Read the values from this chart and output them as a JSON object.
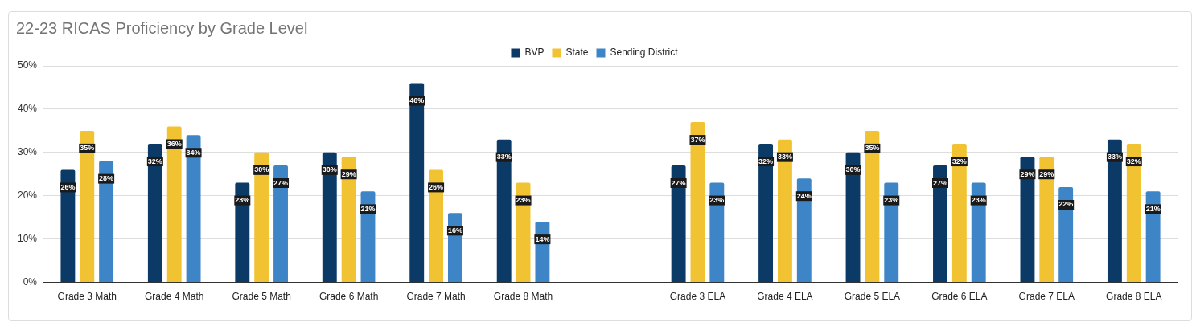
{
  "chart_data": {
    "type": "bar",
    "title": "22-23 RICAS Proficiency by Grade Level",
    "categories": [
      "Grade 3 Math",
      "Grade 4 Math",
      "Grade 5 Math",
      "Grade 6 Math",
      "Grade 7 Math",
      "Grade 8 Math",
      null,
      "Grade 3 ELA",
      "Grade 4 ELA",
      "Grade 5 ELA",
      "Grade 6 ELA",
      "Grade 7 ELA",
      "Grade 8 ELA"
    ],
    "series": [
      {
        "name": "BVP",
        "color": "#0b3a66",
        "values": [
          26,
          32,
          23,
          30,
          46,
          33,
          null,
          27,
          32,
          30,
          27,
          29,
          33
        ],
        "value_labels": [
          "26%",
          "32%",
          "23%",
          "30%",
          "46%",
          "33%",
          null,
          "27%",
          "32%",
          "30%",
          "27%",
          "29%",
          "33%"
        ]
      },
      {
        "name": "State",
        "color": "#f1c232",
        "values": [
          35,
          36,
          30,
          29,
          26,
          23,
          null,
          37,
          33,
          35,
          32,
          29,
          32
        ],
        "value_labels": [
          "35%",
          "36%",
          "30%",
          "29%",
          "26%",
          "23%",
          null,
          "37%",
          "33%",
          "35%",
          "32%",
          "29%",
          "32%"
        ]
      },
      {
        "name": "Sending District",
        "color": "#3d85c6",
        "values": [
          28,
          34,
          27,
          21,
          16,
          14,
          null,
          23,
          24,
          23,
          23,
          22,
          21
        ],
        "value_labels": [
          "28%",
          "34%",
          "27%",
          "21%",
          "16%",
          "14%",
          null,
          "23%",
          "24%",
          "23%",
          "23%",
          "22%",
          "21%"
        ]
      }
    ],
    "ylim": [
      0,
      50
    ],
    "yticks": [
      {
        "value": 0,
        "label": "0%"
      },
      {
        "value": 10,
        "label": "10%"
      },
      {
        "value": 20,
        "label": "20%"
      },
      {
        "value": 30,
        "label": "30%"
      },
      {
        "value": 40,
        "label": "40%"
      },
      {
        "value": 50,
        "label": "50%"
      }
    ],
    "grid": "y",
    "legend": "top"
  }
}
